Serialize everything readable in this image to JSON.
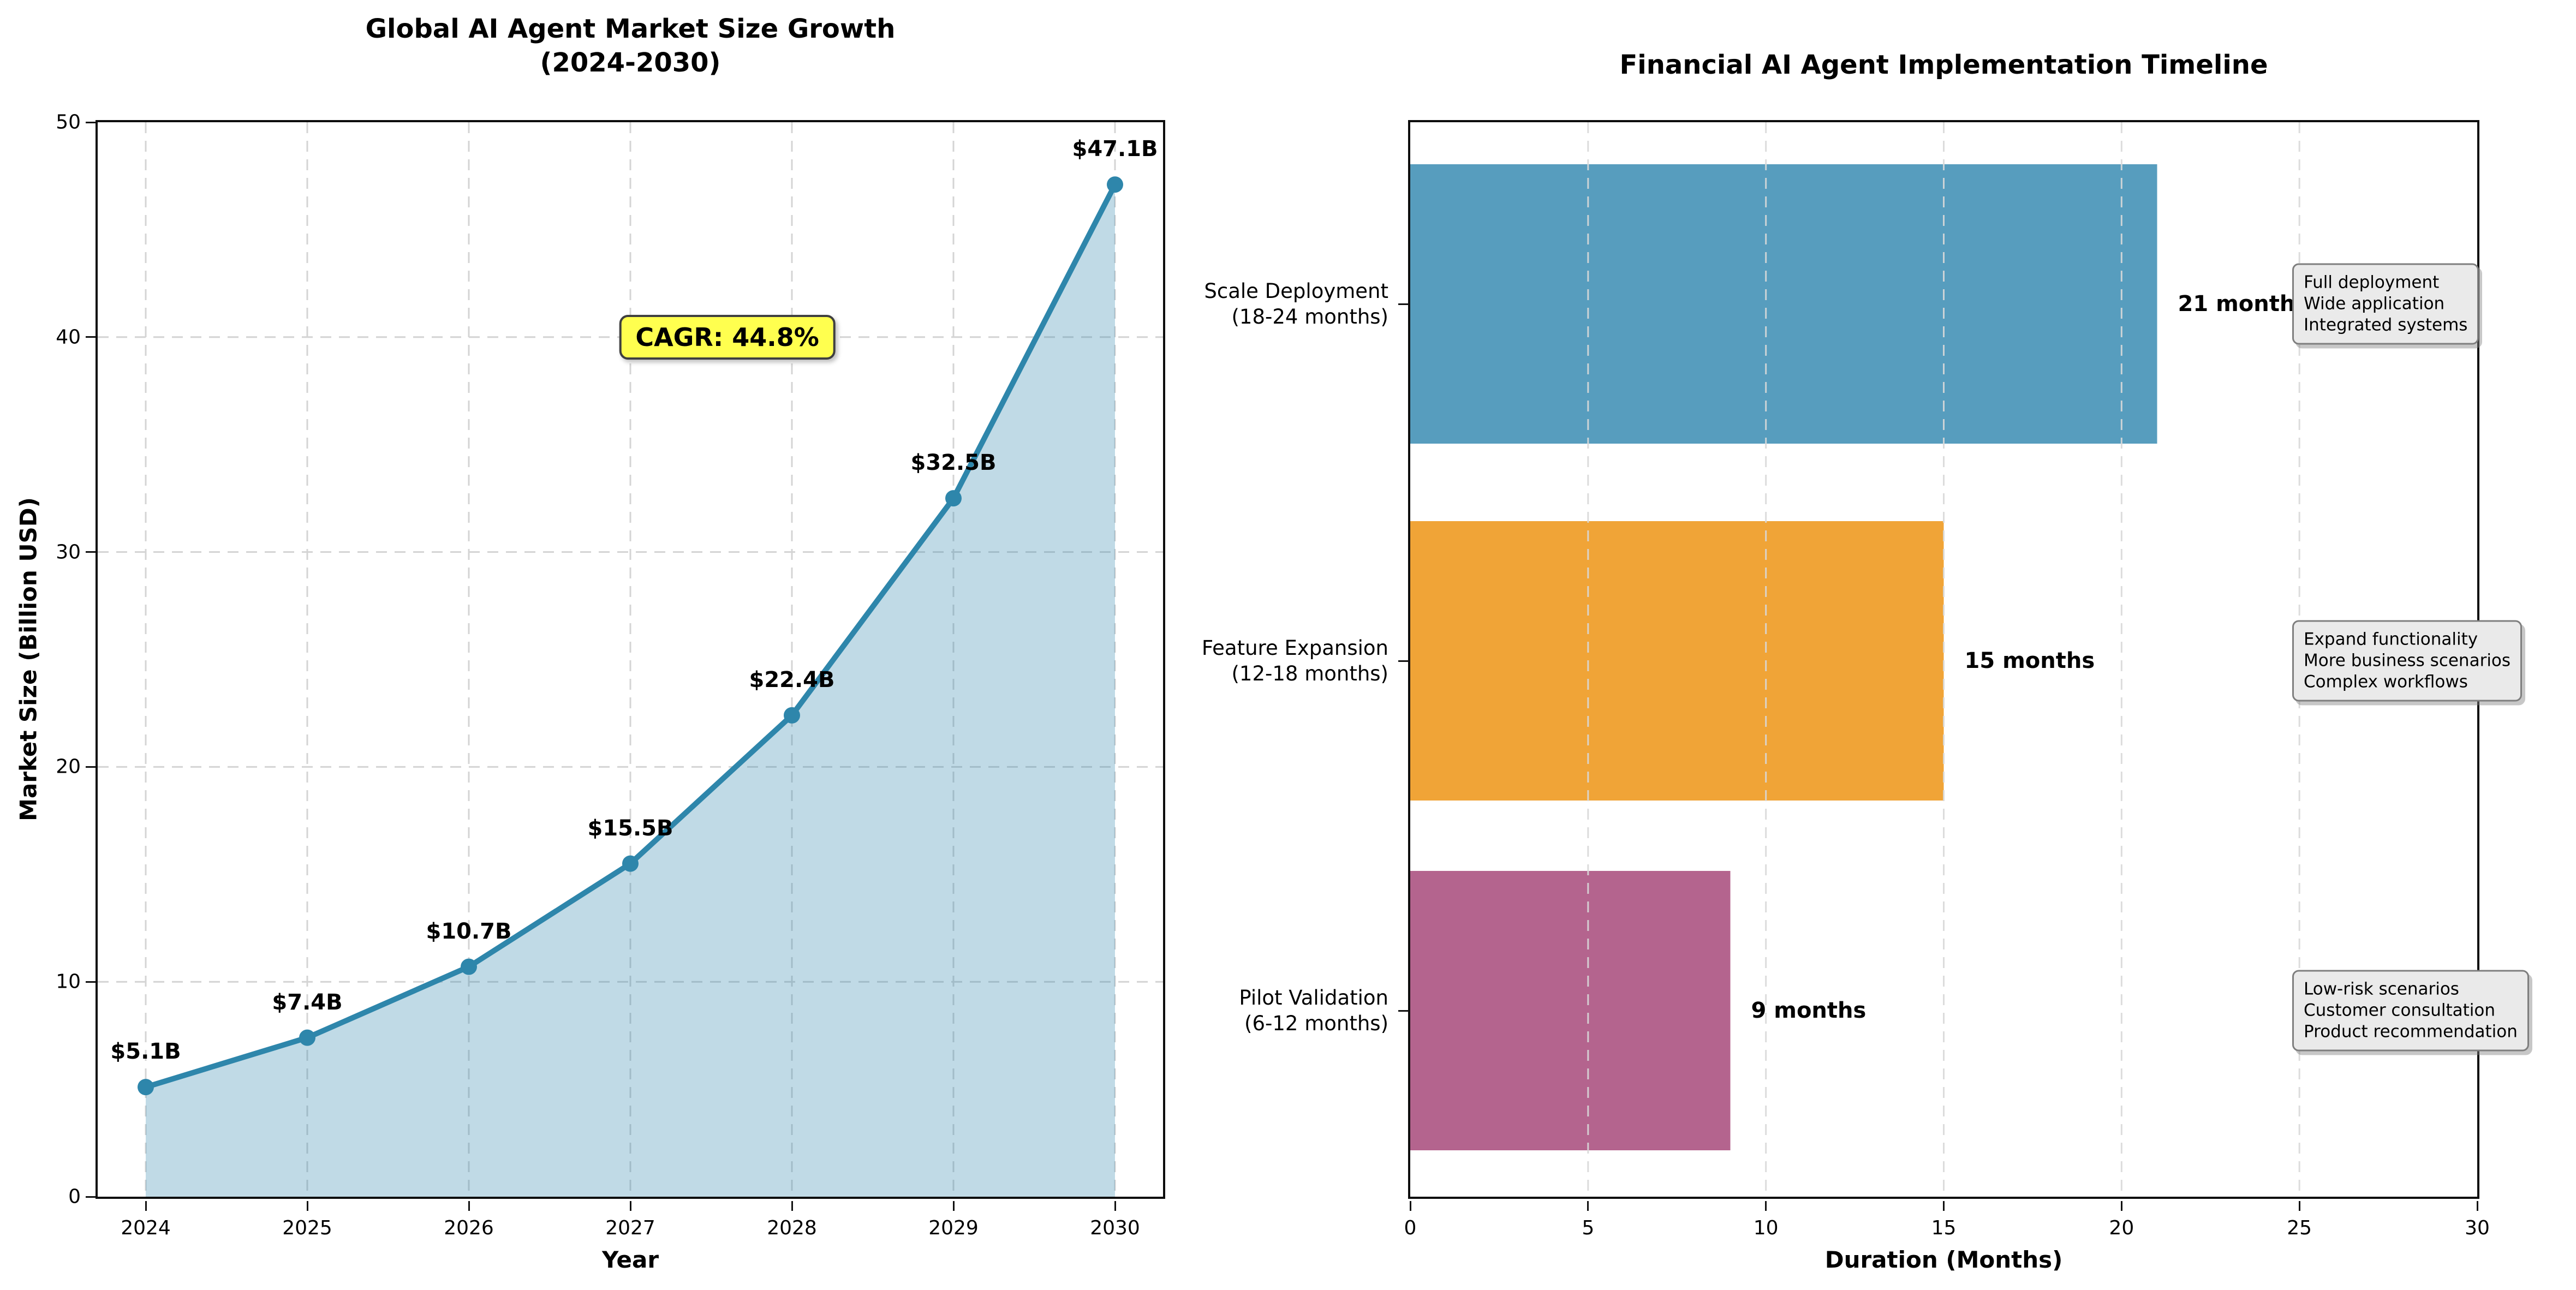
{
  "figure": {
    "background": "#ffffff"
  },
  "chart_data": [
    {
      "id": "market_growth",
      "type": "area",
      "title": "Global AI Agent Market Size Growth",
      "subtitle": "(2024-2030)",
      "x": [
        2024,
        2025,
        2026,
        2027,
        2028,
        2029,
        2030
      ],
      "values": [
        5.1,
        7.4,
        10.7,
        15.5,
        22.4,
        32.5,
        47.1
      ],
      "point_labels": [
        "$5.1B",
        "$7.4B",
        "$10.7B",
        "$15.5B",
        "$22.4B",
        "$32.5B",
        "$47.1B"
      ],
      "xlabel": "Year",
      "ylabel": "Market Size (Billion USD)",
      "ylim": [
        0,
        50
      ],
      "yticks": [
        0,
        10,
        20,
        30,
        40,
        50
      ],
      "xticks": [
        "2024",
        "2025",
        "2026",
        "2027",
        "2028",
        "2029",
        "2030"
      ],
      "grid": "both",
      "line_color": "#2E86AB",
      "marker_color": "#2E86AB",
      "fill_color": "rgba(46,134,171,0.30)",
      "annotation": {
        "text": "CAGR: 44.8%",
        "x": 2027.6,
        "y": 40,
        "bg": "#FFFF4F",
        "border": "#3f3f3f"
      }
    },
    {
      "id": "implementation_timeline",
      "type": "bar",
      "orientation": "horizontal",
      "title": "Financial AI Agent Implementation Timeline",
      "categories": [
        "Scale Deployment\n(18-24 months)",
        "Feature Expansion\n(12-18 months)",
        "Pilot Validation\n(6-12 months)"
      ],
      "values": [
        21,
        15,
        9
      ],
      "bar_labels": [
        "21 months",
        "15 months",
        "9 months"
      ],
      "bar_colors": [
        "#579DBE",
        "#F0A437",
        "#B4648E"
      ],
      "xlabel": "Duration (Months)",
      "xlim": [
        0,
        30
      ],
      "xticks": [
        0,
        5,
        10,
        15,
        20,
        25,
        30
      ],
      "grid": "x",
      "annotations": [
        {
          "lines": [
            "Full deployment",
            "Wide application",
            "Integrated systems"
          ]
        },
        {
          "lines": [
            "Expand functionality",
            "More business scenarios",
            "Complex workflows"
          ]
        },
        {
          "lines": [
            "Low-risk scenarios",
            "Customer consultation",
            "Product recommendation"
          ]
        }
      ],
      "annotation_style": {
        "bg": "#EAEAEA",
        "border": "#7e7e7e"
      }
    }
  ]
}
